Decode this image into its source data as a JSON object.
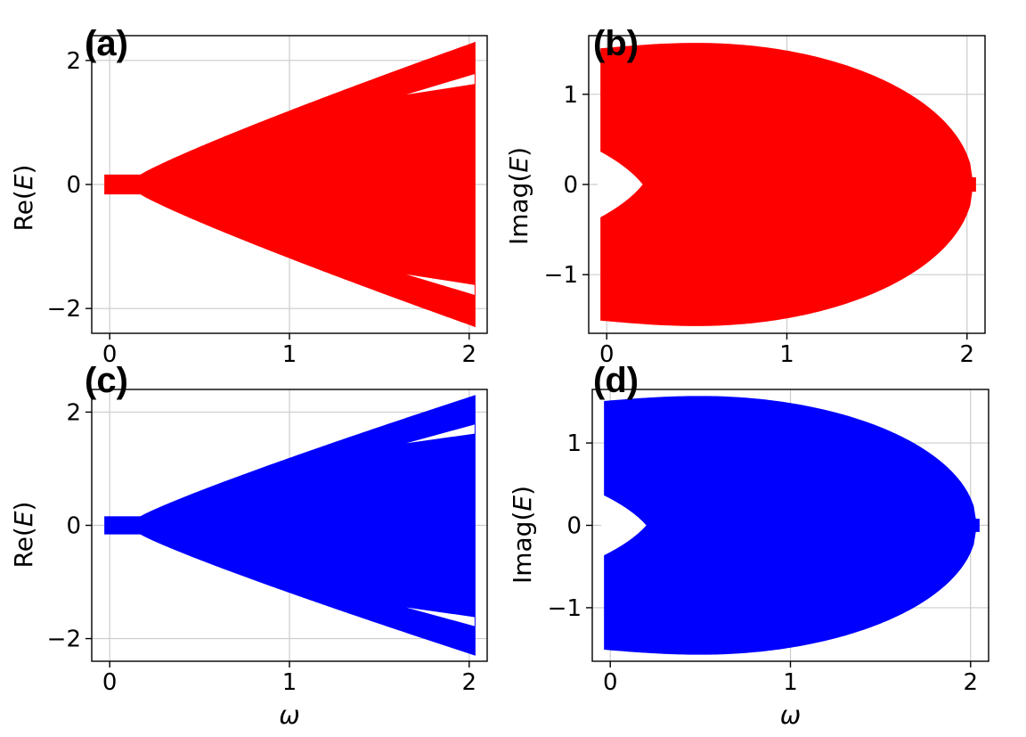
{
  "chart_data": [
    {
      "type": "area",
      "panel": "(a)",
      "xlabel": "",
      "ylabel": "Re(E)",
      "ylabel_parts": [
        "Re(",
        "E",
        ")"
      ],
      "xlim": [
        -0.1,
        2.1
      ],
      "ylim": [
        -2.4,
        2.4
      ],
      "xticks": [
        0,
        1,
        2
      ],
      "xtick_labels": [
        "0",
        "1",
        "2"
      ],
      "yticks": [
        -2,
        0,
        2
      ],
      "ytick_labels": [
        "−2",
        "0",
        "2"
      ],
      "grid": true,
      "color": "#ff0000",
      "shape": "re",
      "x_range": [
        0,
        2.03
      ]
    },
    {
      "type": "area",
      "panel": "(b)",
      "xlabel": "",
      "ylabel": "Imag(E)",
      "ylabel_parts": [
        "Imag(",
        "E",
        ")"
      ],
      "xlim": [
        -0.1,
        2.1
      ],
      "ylim": [
        -1.65,
        1.65
      ],
      "xticks": [
        0,
        1,
        2
      ],
      "xtick_labels": [
        "0",
        "1",
        "2"
      ],
      "yticks": [
        -1,
        0,
        1
      ],
      "ytick_labels": [
        "−1",
        "0",
        "1"
      ],
      "grid": true,
      "color": "#ff0000",
      "shape": "im",
      "x_range": [
        -0.03,
        2.03
      ]
    },
    {
      "type": "area",
      "panel": "(c)",
      "xlabel": "ω",
      "ylabel": "Re(E)",
      "ylabel_parts": [
        "Re(",
        "E",
        ")"
      ],
      "xlim": [
        -0.1,
        2.1
      ],
      "ylim": [
        -2.4,
        2.4
      ],
      "xticks": [
        0,
        1,
        2
      ],
      "xtick_labels": [
        "0",
        "1",
        "2"
      ],
      "yticks": [
        -2,
        0,
        2
      ],
      "ytick_labels": [
        "−2",
        "0",
        "2"
      ],
      "grid": true,
      "color": "#0000ff",
      "shape": "re",
      "x_range": [
        0,
        2.03
      ]
    },
    {
      "type": "area",
      "panel": "(d)",
      "xlabel": "ω",
      "ylabel": "Imag(E)",
      "ylabel_parts": [
        "Imag(",
        "E",
        ")"
      ],
      "xlim": [
        -0.1,
        2.1
      ],
      "ylim": [
        -1.65,
        1.65
      ],
      "xticks": [
        0,
        1,
        2
      ],
      "xtick_labels": [
        "0",
        "1",
        "2"
      ],
      "yticks": [
        -1,
        0,
        1
      ],
      "ytick_labels": [
        "−1",
        "0",
        "1"
      ],
      "grid": true,
      "color": "#0000ff",
      "shape": "im",
      "x_range": [
        -0.03,
        2.03
      ]
    }
  ]
}
